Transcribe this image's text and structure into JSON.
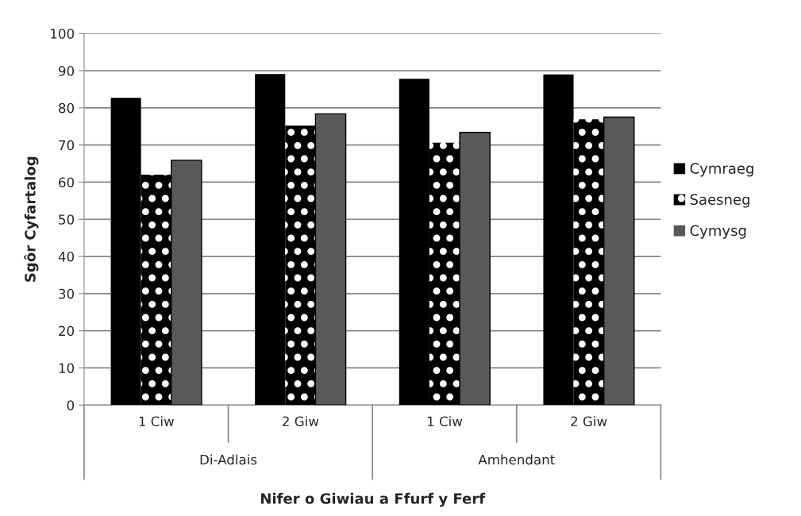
{
  "chart_data": {
    "type": "bar",
    "xlabel": "Nifer o Giwiau a Ffurf y Ferf",
    "ylabel": "Sgôr Cyfartalog",
    "categories": [
      "1 Ciw",
      "2 Giw",
      "1 Ciw",
      "2 Giw"
    ],
    "series": [
      {
        "name": "Cymraeg",
        "color": "#000000",
        "values": [
          82.7,
          89.1,
          87.8,
          89.0
        ]
      },
      {
        "name": "Saesneg",
        "color": "#000000",
        "values": [
          62.0,
          75.2,
          70.6,
          76.9
        ]
      },
      {
        "name": "Cymysg",
        "color": "#595959",
        "values": [
          65.9,
          78.4,
          73.4,
          77.5
        ]
      }
    ],
    "annotations": [
      "Di-Adlais",
      "Amhendant"
    ],
    "ylim": [
      0,
      100
    ],
    "yticks": [
      0,
      10,
      20,
      30,
      40,
      50,
      60,
      70,
      80,
      90,
      100
    ],
    "grid": "y",
    "legend": "right"
  }
}
